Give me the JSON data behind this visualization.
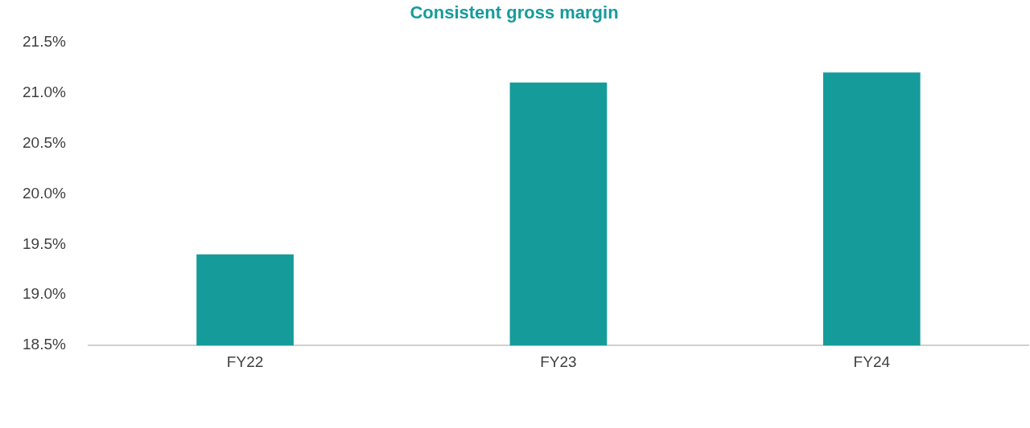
{
  "chart_data": {
    "type": "bar",
    "title": "Consistent gross margin",
    "categories": [
      "FY22",
      "FY23",
      "FY24"
    ],
    "values": [
      19.4,
      21.1,
      21.2
    ],
    "color": "#169b9b",
    "ylim": [
      18.5,
      21.5
    ],
    "yticks": [
      {
        "value": 18.5,
        "label": "18.5%"
      },
      {
        "value": 19.0,
        "label": "19.0%"
      },
      {
        "value": 19.5,
        "label": "19.5%"
      },
      {
        "value": 20.0,
        "label": "20.0%"
      },
      {
        "value": 20.5,
        "label": "20.5%"
      },
      {
        "value": 21.0,
        "label": "21.0%"
      },
      {
        "value": 21.5,
        "label": "21.5%"
      }
    ],
    "grid": false,
    "legend": false
  }
}
